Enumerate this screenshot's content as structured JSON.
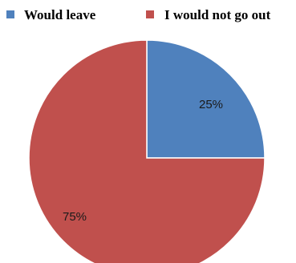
{
  "chart_data": {
    "type": "pie",
    "title": "",
    "categories": [
      "Would leave",
      "I would not go out"
    ],
    "values": [
      25,
      75
    ],
    "labels": [
      "25%",
      "75%"
    ],
    "colors": [
      "#4f81bd",
      "#c0504d"
    ],
    "legend_position": "top",
    "start": "12 o'clock",
    "direction": "clockwise"
  }
}
